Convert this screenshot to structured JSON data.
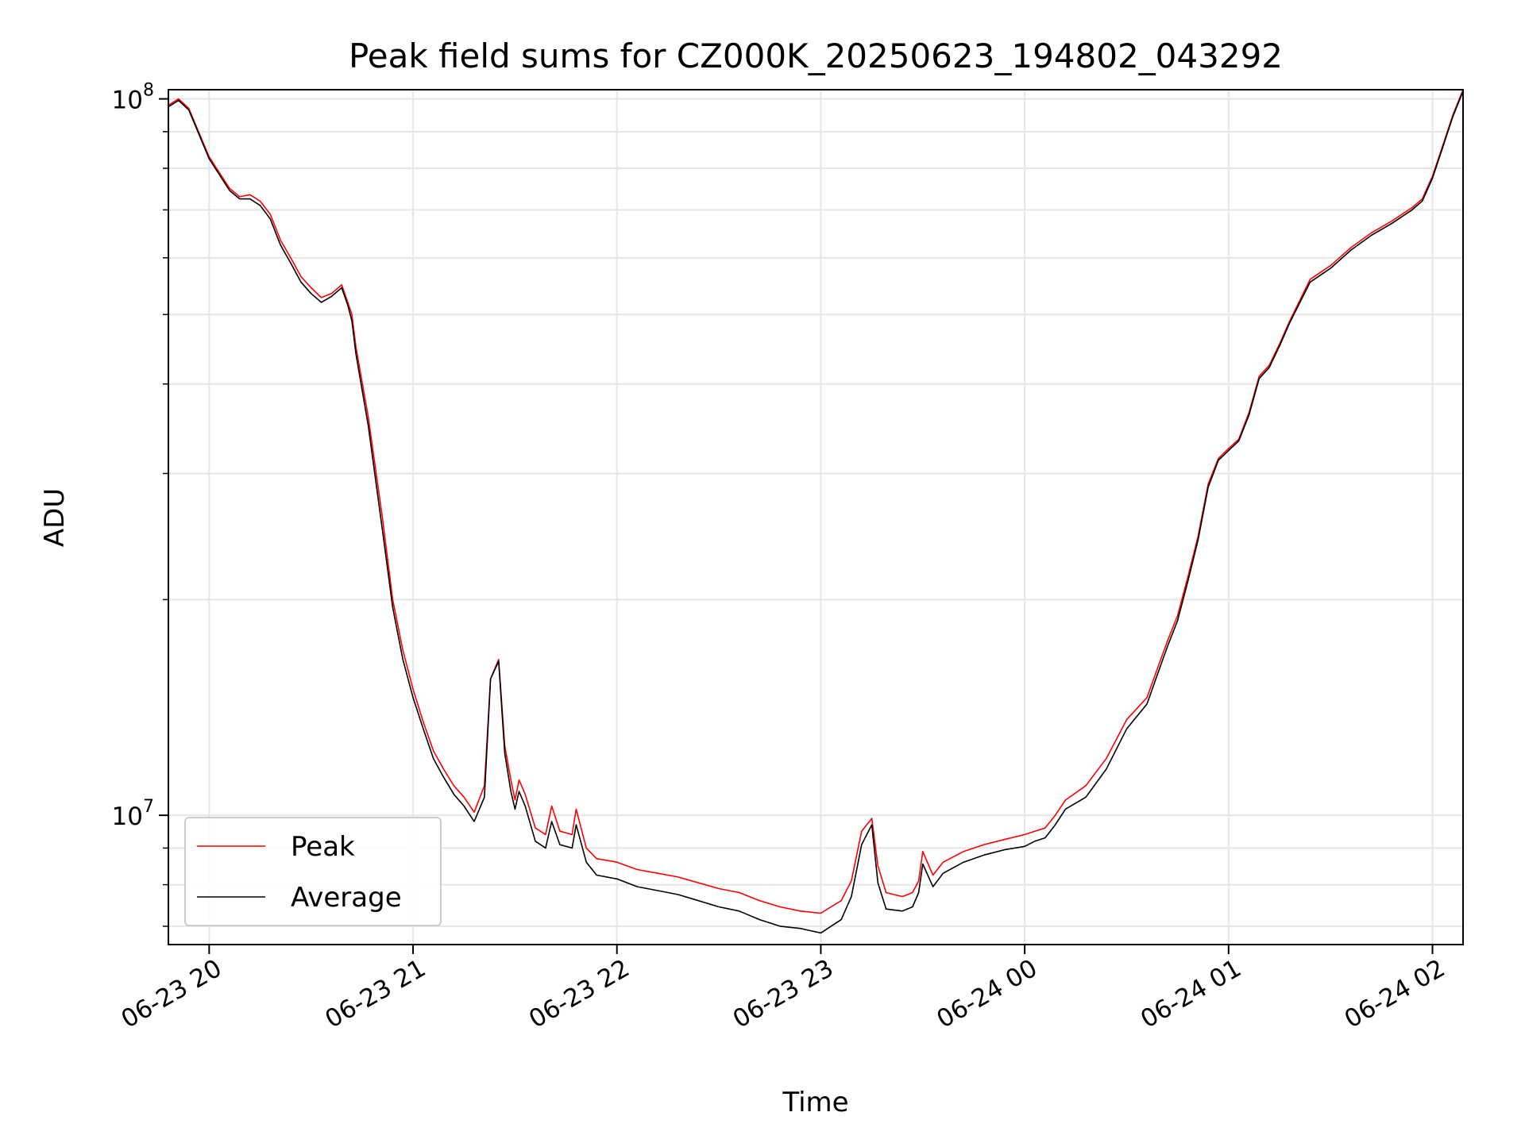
{
  "chart_data": {
    "type": "line",
    "title": "Peak field sums for CZ000K_20250623_194802_043292",
    "xlabel": "Time",
    "ylabel": "ADU",
    "x_unit": "hours since 06-23 00:00",
    "xlim": [
      19.8,
      26.15
    ],
    "ylim": [
      6600000.0,
      103000000.0
    ],
    "yscale": "log",
    "x_ticks": [
      {
        "value": 20,
        "label": "06-23 20"
      },
      {
        "value": 21,
        "label": "06-23 21"
      },
      {
        "value": 22,
        "label": "06-23 22"
      },
      {
        "value": 23,
        "label": "06-23 23"
      },
      {
        "value": 24,
        "label": "06-24 00"
      },
      {
        "value": 25,
        "label": "06-24 01"
      },
      {
        "value": 26,
        "label": "06-24 02"
      }
    ],
    "y_major_ticks": [
      {
        "value": 10000000,
        "base": "10",
        "exp": "7"
      },
      {
        "value": 100000000,
        "base": "10",
        "exp": "8"
      }
    ],
    "y_minor_ticks": [
      7000000,
      8000000,
      9000000,
      20000000,
      30000000,
      40000000,
      50000000,
      60000000,
      70000000,
      80000000,
      90000000
    ],
    "grid": true,
    "legend_position": "lower-left",
    "series": [
      {
        "name": "Peak",
        "color": "#ff0000",
        "role": "peak"
      },
      {
        "name": "Average",
        "color": "#000000",
        "role": "average"
      }
    ],
    "x": [
      19.8,
      19.85,
      19.9,
      20.0,
      20.1,
      20.15,
      20.2,
      20.25,
      20.3,
      20.35,
      20.4,
      20.45,
      20.5,
      20.55,
      20.6,
      20.65,
      20.68,
      20.7,
      20.72,
      20.78,
      20.85,
      20.9,
      20.95,
      21.0,
      21.05,
      21.1,
      21.15,
      21.2,
      21.25,
      21.3,
      21.35,
      21.38,
      21.42,
      21.45,
      21.48,
      21.5,
      21.52,
      21.55,
      21.6,
      21.65,
      21.68,
      21.72,
      21.78,
      21.8,
      21.85,
      21.9,
      22.0,
      22.1,
      22.2,
      22.3,
      22.4,
      22.5,
      22.6,
      22.7,
      22.8,
      22.9,
      23.0,
      23.05,
      23.1,
      23.15,
      23.2,
      23.25,
      23.28,
      23.32,
      23.4,
      23.45,
      23.48,
      23.5,
      23.55,
      23.6,
      23.7,
      23.8,
      23.9,
      24.0,
      24.05,
      24.1,
      24.15,
      24.2,
      24.3,
      24.4,
      24.5,
      24.6,
      24.65,
      24.7,
      24.75,
      24.8,
      24.85,
      24.9,
      24.95,
      25.0,
      25.05,
      25.1,
      25.15,
      25.2,
      25.25,
      25.3,
      25.4,
      25.5,
      25.6,
      25.7,
      25.8,
      25.9,
      25.95,
      26.0,
      26.05,
      26.1,
      26.15
    ],
    "peak_values": [
      98000000,
      100000000,
      97000000,
      83000000,
      75000000,
      73000000,
      73500000,
      72000000,
      69000000,
      63500000,
      60000000,
      56500000,
      54500000,
      52800000,
      53500000,
      55000000,
      52000000,
      50000000,
      45000000,
      36000000,
      26000000,
      20000000,
      17000000,
      15000000,
      13500000,
      12300000,
      11600000,
      11000000,
      10600000,
      10100000,
      11000000,
      15500000,
      16500000,
      12500000,
      11200000,
      10500000,
      11200000,
      10700000,
      9600000,
      9400000,
      10300000,
      9500000,
      9400000,
      10200000,
      9000000,
      8700000,
      8600000,
      8400000,
      8300000,
      8200000,
      8050000,
      7900000,
      7800000,
      7600000,
      7450000,
      7350000,
      7300000,
      7450000,
      7600000,
      8100000,
      9500000,
      9900000,
      8500000,
      7800000,
      7700000,
      7800000,
      8100000,
      8900000,
      8250000,
      8600000,
      8900000,
      9100000,
      9250000,
      9400000,
      9500000,
      9600000,
      10000000,
      10500000,
      11000000,
      12000000,
      13600000,
      14600000,
      16000000,
      17500000,
      19000000,
      21500000,
      24500000,
      29000000,
      31500000,
      32500000,
      33500000,
      36500000,
      41000000,
      42500000,
      45500000,
      49000000,
      56000000,
      58500000,
      62000000,
      65000000,
      67500000,
      70500000,
      72500000,
      78000000,
      86000000,
      95000000,
      103000000
    ],
    "average_values": [
      97500000,
      99500000,
      96500000,
      82500000,
      74500000,
      72500000,
      72500000,
      71000000,
      68000000,
      62500000,
      59000000,
      55500000,
      53500000,
      52000000,
      53000000,
      54500000,
      51500000,
      49000000,
      44000000,
      35000000,
      25000000,
      19500000,
      16500000,
      14600000,
      13200000,
      12000000,
      11300000,
      10700000,
      10300000,
      9800000,
      10600000,
      15500000,
      16400000,
      12200000,
      10800000,
      10200000,
      10800000,
      10300000,
      9200000,
      9000000,
      9800000,
      9100000,
      9000000,
      9700000,
      8600000,
      8250000,
      8150000,
      7950000,
      7850000,
      7750000,
      7600000,
      7450000,
      7350000,
      7150000,
      7000000,
      6950000,
      6850000,
      7000000,
      7150000,
      7700000,
      9100000,
      9700000,
      8050000,
      7400000,
      7350000,
      7450000,
      7800000,
      8550000,
      7950000,
      8300000,
      8600000,
      8800000,
      8950000,
      9050000,
      9200000,
      9300000,
      9700000,
      10200000,
      10600000,
      11600000,
      13200000,
      14300000,
      15700000,
      17200000,
      18700000,
      21200000,
      24200000,
      28700000,
      31300000,
      32300000,
      33300000,
      36200000,
      40700000,
      42200000,
      45200000,
      48700000,
      55500000,
      58000000,
      61500000,
      64500000,
      67000000,
      70000000,
      72000000,
      77500000,
      85500000,
      94500000,
      102500000
    ]
  }
}
